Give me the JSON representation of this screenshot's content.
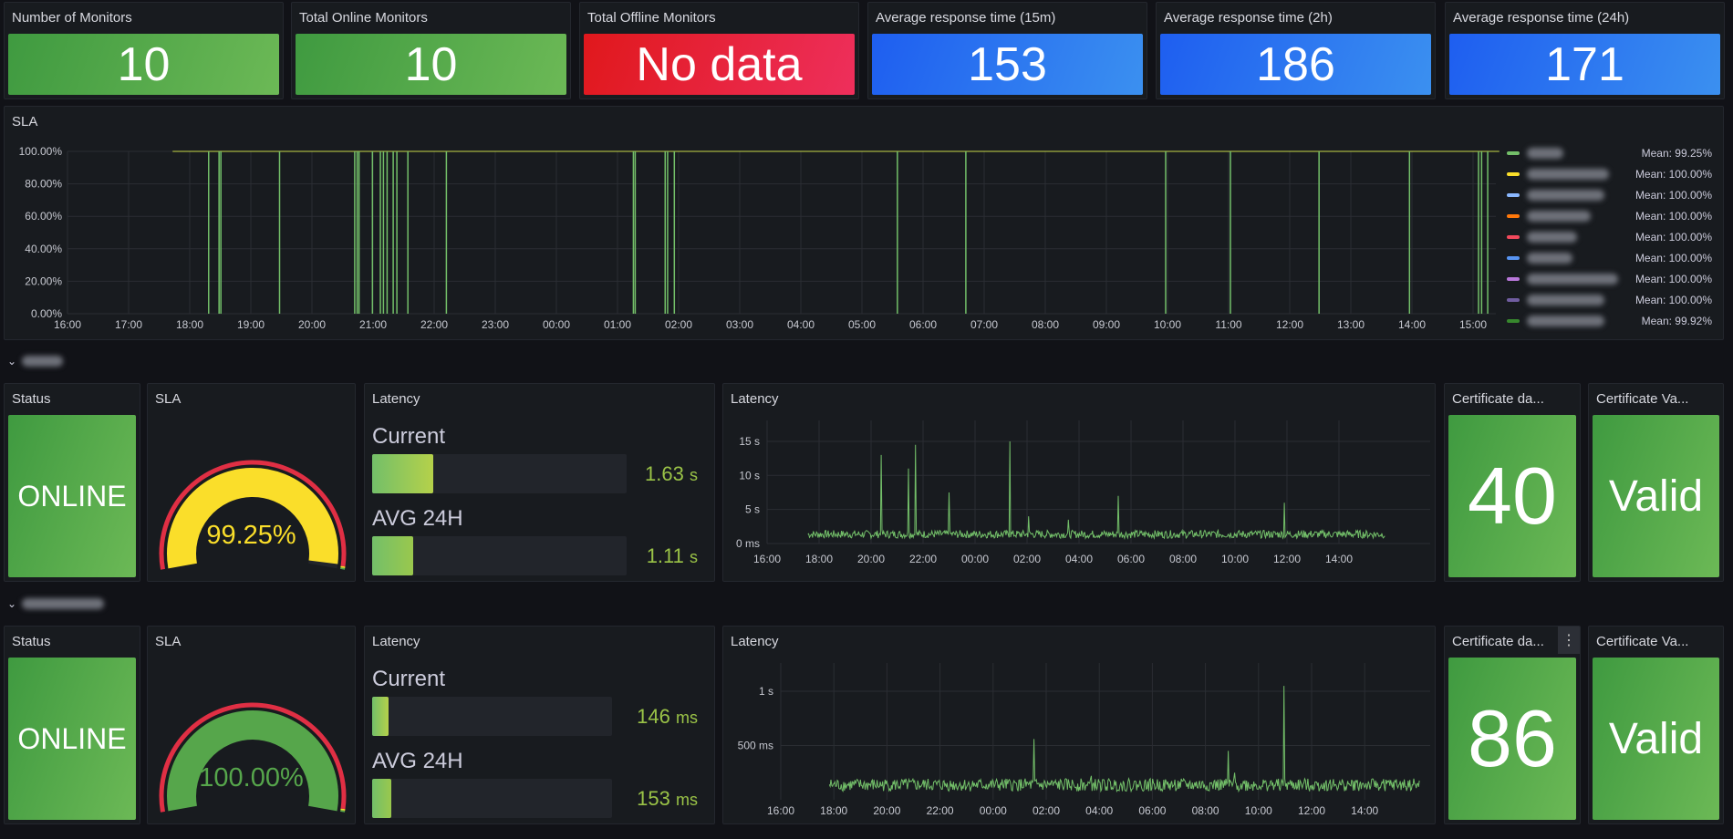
{
  "stats": [
    {
      "title": "Number of Monitors",
      "value": "10",
      "color": "green"
    },
    {
      "title": "Total Online Monitors",
      "value": "10",
      "color": "green"
    },
    {
      "title": "Total Offline Monitors",
      "value": "No data",
      "color": "red"
    },
    {
      "title": "Average response time (15m)",
      "value": "153",
      "color": "blue"
    },
    {
      "title": "Average response time (2h)",
      "value": "186",
      "color": "blue"
    },
    {
      "title": "Average response time (24h)",
      "value": "171",
      "color": "blue"
    }
  ],
  "sla_panel": {
    "title": "SLA",
    "legend": [
      {
        "color": "#73bf69",
        "mean": "Mean: 99.25%"
      },
      {
        "color": "#fade2a",
        "mean": "Mean: 100.00%"
      },
      {
        "color": "#8ab8ff",
        "mean": "Mean: 100.00%"
      },
      {
        "color": "#ff780a",
        "mean": "Mean: 100.00%"
      },
      {
        "color": "#f2495c",
        "mean": "Mean: 100.00%"
      },
      {
        "color": "#5794f2",
        "mean": "Mean: 100.00%"
      },
      {
        "color": "#b877d9",
        "mean": "Mean: 100.00%"
      },
      {
        "color": "#705da0",
        "mean": "Mean: 100.00%"
      },
      {
        "color": "#37872d",
        "mean": "Mean: 99.92%"
      }
    ]
  },
  "chart_data": [
    {
      "type": "line",
      "title": "SLA",
      "yticks": [
        "0.00%",
        "20.00%",
        "40.00%",
        "60.00%",
        "80.00%",
        "100.00%"
      ],
      "ylim": [
        0,
        100
      ],
      "xticks": [
        "16:00",
        "17:00",
        "18:00",
        "19:00",
        "20:00",
        "21:00",
        "22:00",
        "23:00",
        "00:00",
        "01:00",
        "02:00",
        "03:00",
        "04:00",
        "05:00",
        "06:00",
        "07:00",
        "08:00",
        "09:00",
        "10:00",
        "11:00",
        "12:00",
        "13:00",
        "14:00",
        "15:00"
      ],
      "x_range_hours": [
        1.72,
        23.43
      ],
      "dips_hours_since_16": [
        2.31,
        2.48,
        2.51,
        3.47,
        4.7,
        4.74,
        4.77,
        4.99,
        5.12,
        5.17,
        5.23,
        5.33,
        5.39,
        5.57,
        6.2,
        9.26,
        9.29,
        9.78,
        9.82,
        9.93,
        13.58,
        14.7,
        17.97,
        19.03,
        20.48,
        21.96,
        23.09,
        23.14,
        23.24
      ]
    },
    {
      "type": "line",
      "title": "Latency",
      "unit": "s",
      "yticks": [
        "0 ms",
        "5 s",
        "10 s",
        "15 s"
      ],
      "ylim": [
        0,
        15
      ],
      "xticks": [
        "16:00",
        "18:00",
        "20:00",
        "22:00",
        "00:00",
        "02:00",
        "04:00",
        "06:00",
        "08:00",
        "10:00",
        "12:00",
        "14:00"
      ],
      "x_range_hours": [
        1.57,
        23.8
      ],
      "baseline": 1.3,
      "spikes": [
        [
          4.4,
          13
        ],
        [
          5.45,
          11
        ],
        [
          5.72,
          14.5
        ],
        [
          7.0,
          7.5
        ],
        [
          9.35,
          15
        ],
        [
          10.05,
          4
        ],
        [
          11.6,
          3.5
        ],
        [
          13.5,
          7
        ],
        [
          19.9,
          6
        ]
      ]
    },
    {
      "type": "line",
      "title": "Latency",
      "unit": "ms",
      "yticks": [
        "500 ms",
        "1 s"
      ],
      "ylim": [
        0,
        1000
      ],
      "xticks": [
        "16:00",
        "18:00",
        "20:00",
        "22:00",
        "00:00",
        "02:00",
        "04:00",
        "06:00",
        "08:00",
        "10:00",
        "12:00",
        "14:00"
      ],
      "x_range_hours": [
        1.83,
        24.07
      ],
      "baseline": 130,
      "spikes": [
        [
          9.55,
          560
        ],
        [
          11.7,
          220
        ],
        [
          16.85,
          450
        ],
        [
          17.1,
          250
        ],
        [
          18.95,
          1050
        ],
        [
          17.5,
          180
        ]
      ]
    }
  ],
  "monitors": [
    {
      "status_title": "Status",
      "status": "ONLINE",
      "sla_title": "SLA",
      "sla": "99.25%",
      "sla_value": 99.25,
      "sla_color": "#fade2a",
      "latency_title": "Latency",
      "current_label": "Current",
      "current_value": "1.63",
      "current_unit": "s",
      "current_fill": 0.24,
      "avg_label": "AVG 24H",
      "avg_value": "1.11",
      "avg_unit": "s",
      "avg_fill": 0.16,
      "graph_title": "Latency",
      "cert_days_title": "Certificate da...",
      "cert_days": "40",
      "cert_valid_title": "Certificate Va...",
      "cert_valid": "Valid"
    },
    {
      "status_title": "Status",
      "status": "ONLINE",
      "sla_title": "SLA",
      "sla": "100.00%",
      "sla_value": 100,
      "sla_color": "#56a64b",
      "latency_title": "Latency",
      "current_label": "Current",
      "current_value": "146",
      "current_unit": "ms",
      "current_fill": 0.07,
      "avg_label": "AVG 24H",
      "avg_value": "153",
      "avg_unit": "ms",
      "avg_fill": 0.08,
      "graph_title": "Latency",
      "cert_days_title": "Certificate da...",
      "cert_days": "86",
      "cert_valid_title": "Certificate Va...",
      "cert_valid": "Valid"
    }
  ]
}
